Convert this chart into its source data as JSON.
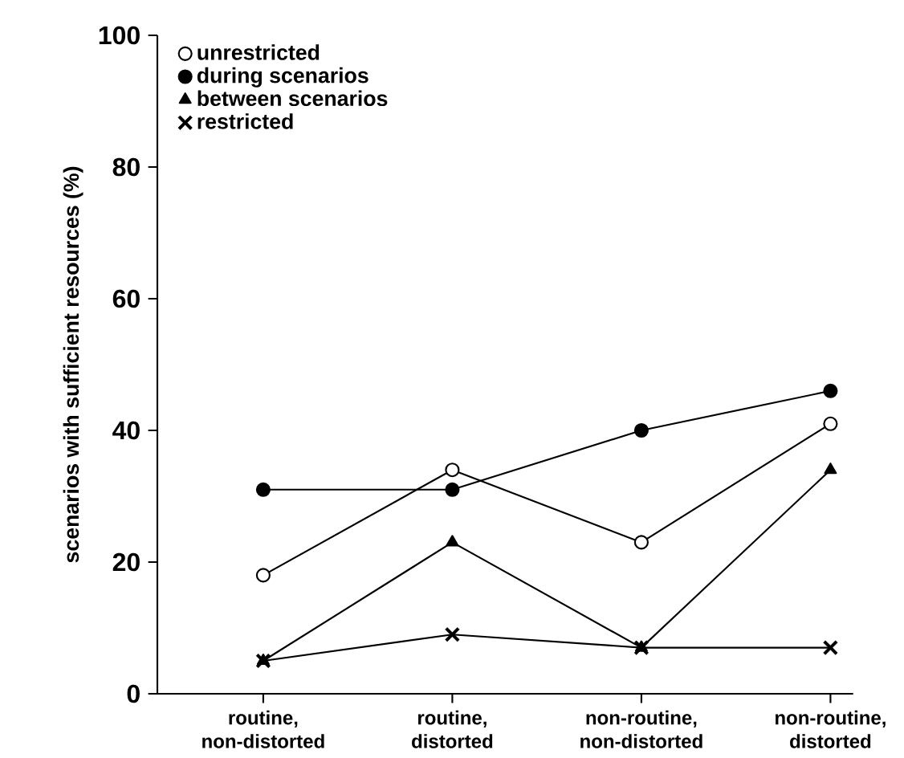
{
  "chart_data": {
    "type": "line",
    "ylabel": "scenarios with sufficient resources (%)",
    "categories": [
      "routine, non-distorted",
      "routine, distorted",
      "non-routine, non-distorted",
      "non-routine, distorted"
    ],
    "series": [
      {
        "name": "unrestricted",
        "color": "#000000",
        "marker": "circle",
        "values": [
          18,
          34,
          23,
          41
        ]
      },
      {
        "name": "during scenarios",
        "color": "#000000",
        "marker": "circle",
        "values": [
          31,
          31,
          40,
          46
        ]
      },
      {
        "name": "between scenarios",
        "color": "#000000",
        "marker": "triangle",
        "values": [
          5,
          23,
          7,
          34
        ]
      },
      {
        "name": "restricted",
        "color": "#000000",
        "marker": "cross",
        "values": [
          5,
          9,
          7,
          7
        ]
      }
    ],
    "ylim": [
      0,
      100
    ],
    "yticks": [
      0,
      20,
      40,
      60,
      80,
      100
    ],
    "grid": false,
    "legend": "top left",
    "line_style": "solid"
  }
}
